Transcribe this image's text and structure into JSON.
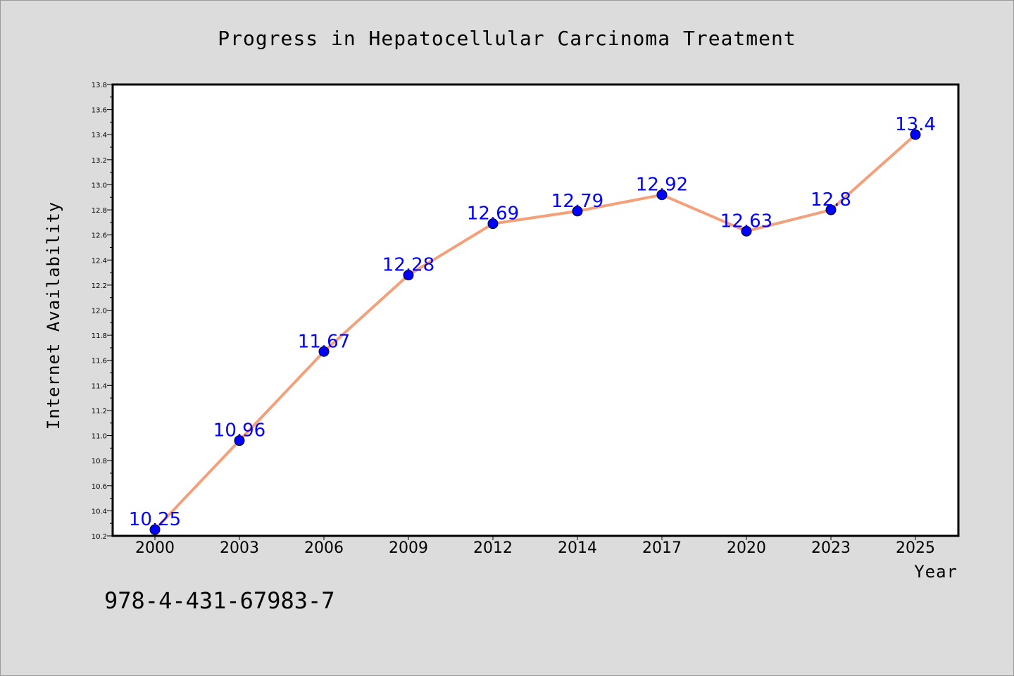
{
  "chart_data": {
    "type": "line",
    "title": "Progress in Hepatocellular Carcinoma Treatment",
    "xlabel": "Year",
    "ylabel": "Internet Availability",
    "categories": [
      "2000",
      "2003",
      "2006",
      "2009",
      "2012",
      "2014",
      "2017",
      "2020",
      "2023",
      "2025"
    ],
    "values": [
      10.25,
      10.96,
      11.67,
      12.28,
      12.69,
      12.79,
      12.92,
      12.63,
      12.8,
      13.4
    ],
    "data_labels": [
      "10.25",
      "10.96",
      "11.67",
      "12.28",
      "12.69",
      "12.79",
      "12.92",
      "12.63",
      "12.8",
      "13.4"
    ],
    "ylim": [
      10.2,
      13.8
    ],
    "yticks": [
      "10.2",
      "10.4",
      "10.6",
      "10.8",
      "11.0",
      "11.2",
      "11.4",
      "11.6",
      "11.8",
      "12.0",
      "12.2",
      "12.4",
      "12.6",
      "12.8",
      "13.0",
      "13.2",
      "13.4",
      "13.6",
      "13.8"
    ],
    "grid": false,
    "line_color": "#f4a07a",
    "marker_color": "#0000ff",
    "label_color": "#0000ff",
    "background_color": "#dcdcdc",
    "plot_background": "#ffffff"
  },
  "footer": {
    "isbn": "978-4-431-67983-7"
  }
}
